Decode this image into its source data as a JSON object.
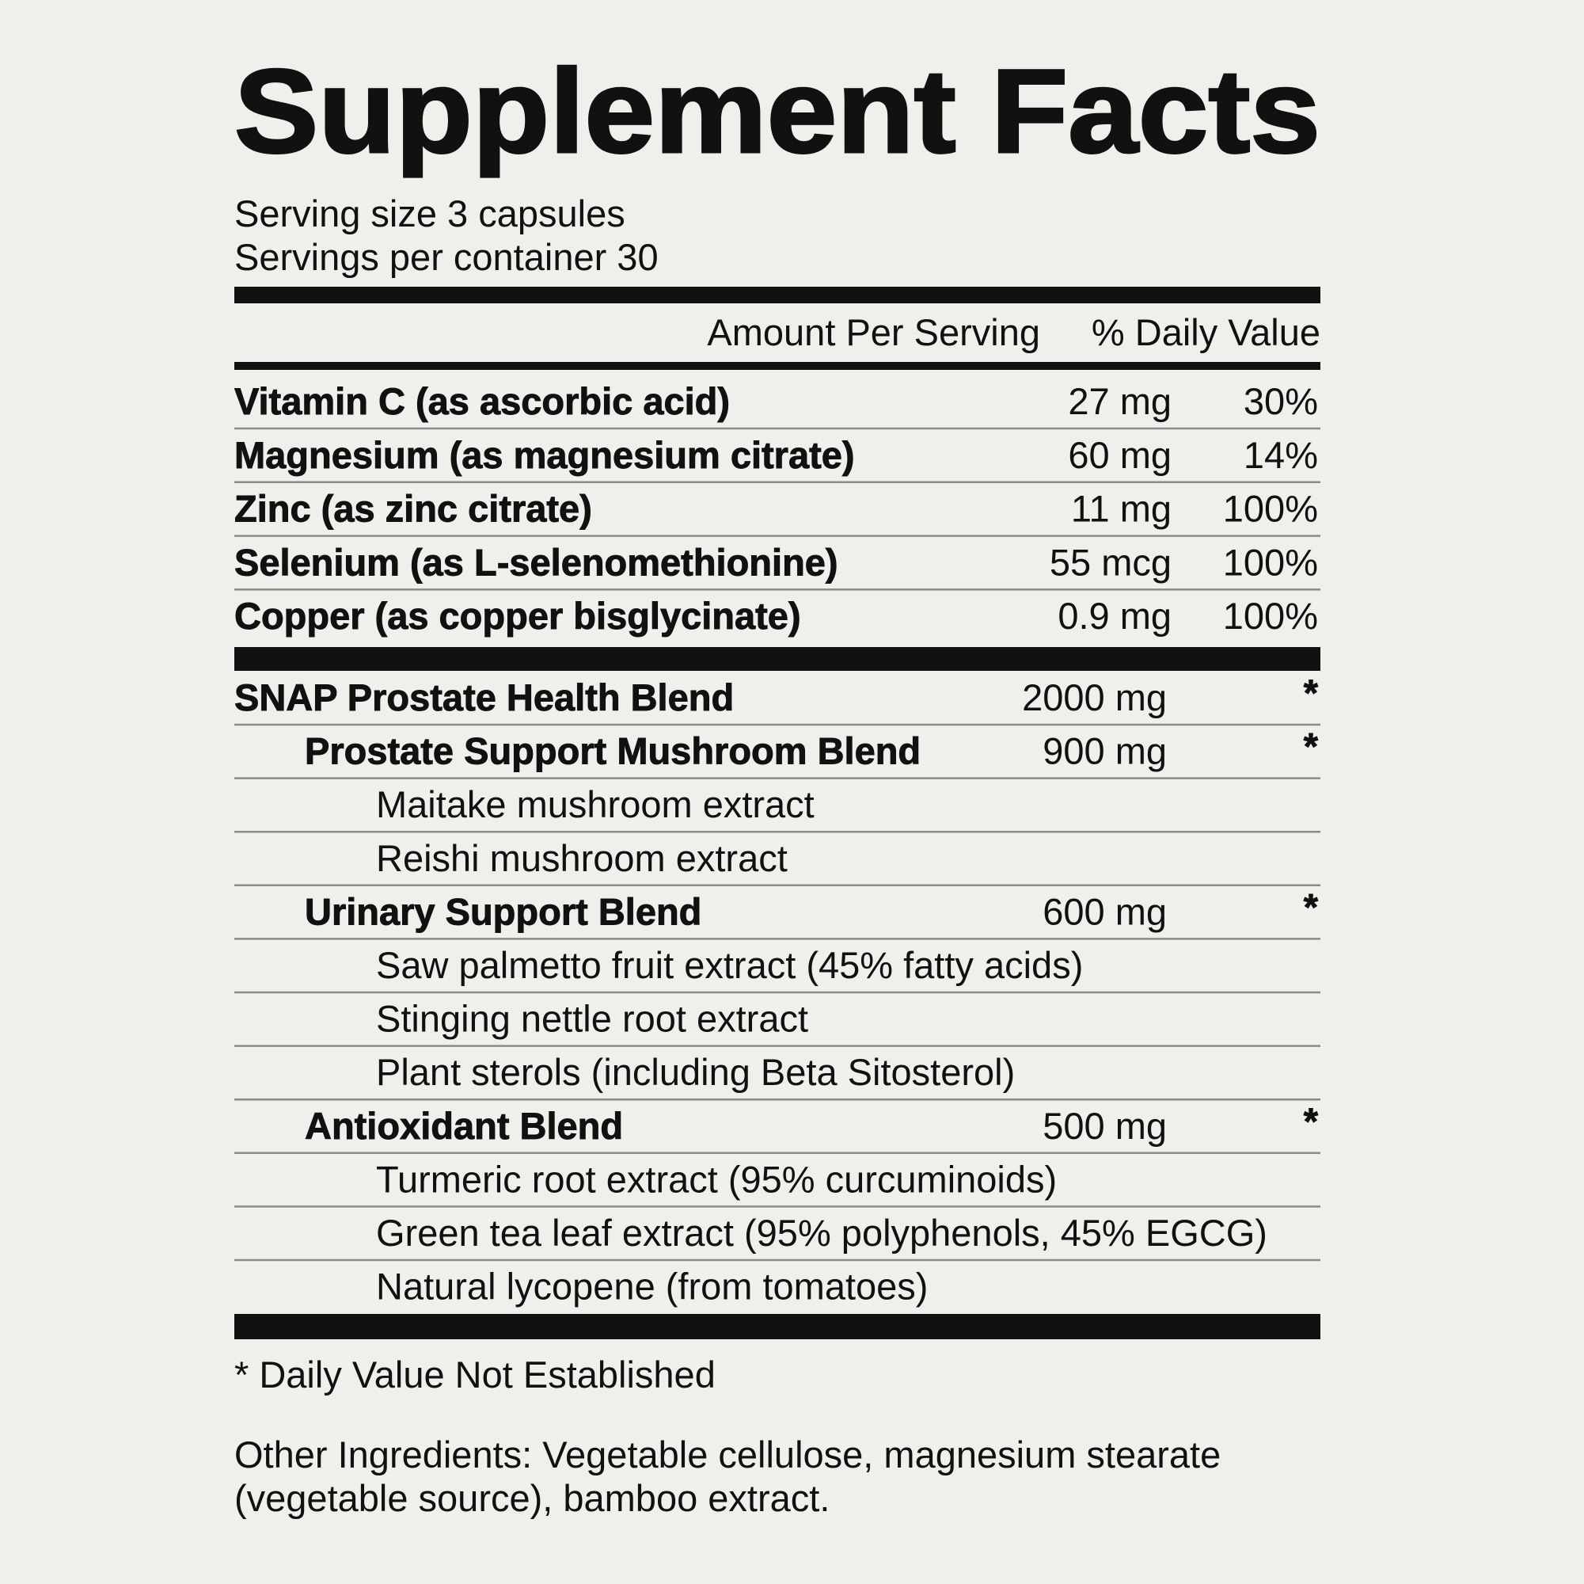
{
  "header": {
    "title": "Supplement Facts",
    "serving_size": "Serving size 3 capsules",
    "servings_per_container": "Servings per container 30"
  },
  "table": {
    "columns": [
      "Amount Per Serving",
      "% Daily Value"
    ],
    "nutrients": [
      {
        "name": "Vitamin C (as ascorbic acid)",
        "amount": "27 mg",
        "daily_value": "30%"
      },
      {
        "name": "Magnesium (as magnesium citrate)",
        "amount": "60 mg",
        "daily_value": "14%"
      },
      {
        "name": "Zinc (as zinc citrate)",
        "amount": "11 mg",
        "daily_value": "100%"
      },
      {
        "name": "Selenium (as L-selenomethionine)",
        "amount": "55 mcg",
        "daily_value": "100%"
      },
      {
        "name": "Copper (as copper bisglycinate)",
        "amount": "0.9 mg",
        "daily_value": "100%"
      }
    ],
    "blend": {
      "name": "SNAP Prostate Health Blend",
      "amount": "2000 mg",
      "daily_value": "*",
      "sub_blends": [
        {
          "name": "Prostate Support Mushroom Blend",
          "amount": "900 mg",
          "daily_value": "*",
          "ingredients": [
            "Maitake mushroom extract",
            "Reishi mushroom extract"
          ]
        },
        {
          "name": "Urinary Support Blend",
          "amount": "600 mg",
          "daily_value": "*",
          "ingredients": [
            "Saw palmetto fruit extract (45% fatty acids)",
            "Stinging nettle root extract",
            "Plant sterols (including Beta Sitosterol)"
          ]
        },
        {
          "name": "Antioxidant Blend",
          "amount": "500 mg",
          "daily_value": "*",
          "ingredients": [
            "Turmeric root extract (95% curcuminoids)",
            "Green tea leaf extract (95% polyphenols, 45% EGCG)",
            "Natural lycopene (from tomatoes)"
          ]
        }
      ]
    }
  },
  "footnote": "* Daily Value Not Established",
  "other_ingredients": [
    "Other Ingredients: Vegetable cellulose, magnesium stearate",
    "(vegetable source), bamboo extract."
  ]
}
